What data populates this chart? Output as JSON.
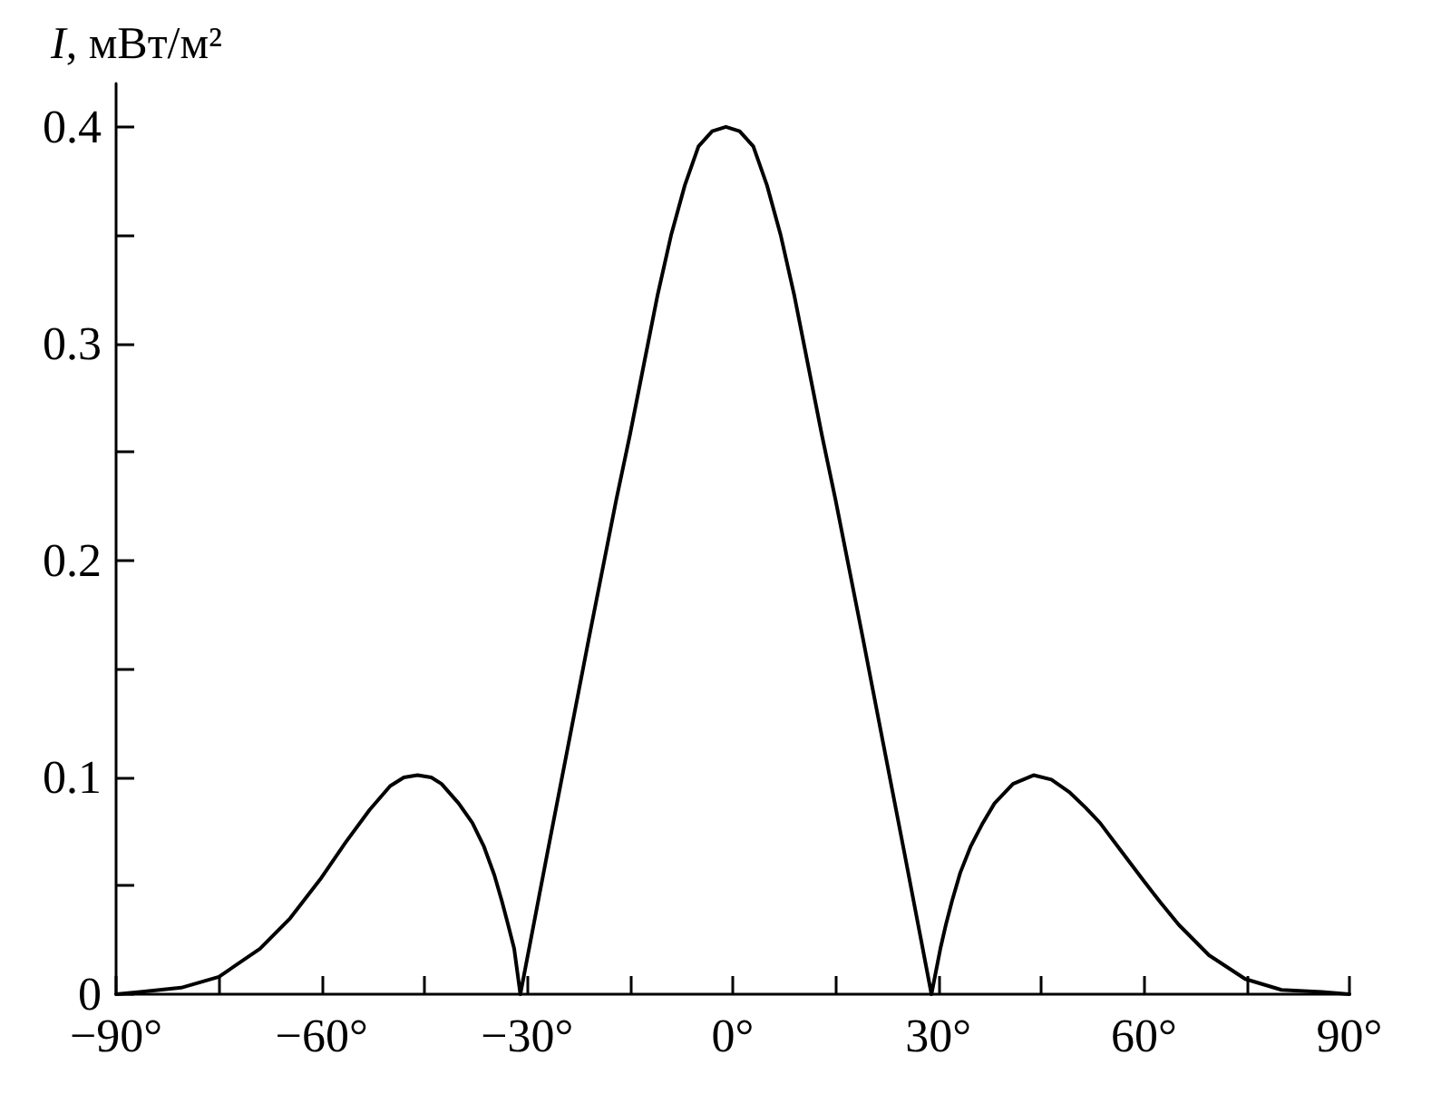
{
  "chart_data": {
    "type": "line",
    "ylabel": "I, мВт/м²",
    "color": "#000000",
    "x": [
      -90,
      -86.5,
      -80.5,
      -75,
      -69,
      -64.6,
      -62.4,
      -60.2,
      -56.5,
      -53,
      -50,
      -48,
      -46,
      -44,
      -42.5,
      -40,
      -38,
      -36.3,
      -34.8,
      -33.7,
      -32.7,
      -31.9,
      -31,
      -29,
      -27,
      -24,
      -21,
      -19,
      -17,
      -15,
      -13,
      -11,
      -9,
      -7,
      -5,
      -3,
      -1,
      1,
      3,
      5,
      7,
      9,
      11,
      13,
      15,
      17,
      19,
      22,
      25,
      27,
      29,
      30.3,
      31.1,
      32,
      33.2,
      34.7,
      36.5,
      38.2,
      40.9,
      43.9,
      46.5,
      49.2,
      51.5,
      53.6,
      56.7,
      59.8,
      62.5,
      65.1,
      69.5,
      74.8,
      80.1,
      86,
      90
    ],
    "values": [
      0,
      0.001,
      0.003,
      0.008,
      0.021,
      0.035,
      0.044,
      0.053,
      0.07,
      0.085,
      0.096,
      0.1,
      0.101,
      0.1,
      0.097,
      0.088,
      0.079,
      0.068,
      0.055,
      0.043,
      0.031,
      0.021,
      0,
      0.033,
      0.066,
      0.115,
      0.164,
      0.196,
      0.228,
      0.258,
      0.29,
      0.322,
      0.35,
      0.373,
      0.391,
      0.398,
      0.4,
      0.398,
      0.391,
      0.373,
      0.35,
      0.322,
      0.29,
      0.258,
      0.228,
      0.196,
      0.164,
      0.115,
      0.066,
      0.033,
      0,
      0.021,
      0.032,
      0.043,
      0.056,
      0.068,
      0.079,
      0.088,
      0.097,
      0.101,
      0.099,
      0.093,
      0.086,
      0.079,
      0.066,
      0.053,
      0.042,
      0.032,
      0.018,
      0.007,
      0.002,
      0.001,
      0
    ],
    "xlim": [
      -90,
      90
    ],
    "xticks": [
      {
        "value": -90,
        "label": "−90°"
      },
      {
        "value": -75,
        "label": null
      },
      {
        "value": -60,
        "label": "−60°"
      },
      {
        "value": -45,
        "label": null
      },
      {
        "value": -30,
        "label": "−30°"
      },
      {
        "value": -15,
        "label": null
      },
      {
        "value": 0,
        "label": "0°"
      },
      {
        "value": 15,
        "label": null
      },
      {
        "value": 30,
        "label": "30°"
      },
      {
        "value": 45,
        "label": null
      },
      {
        "value": 60,
        "label": "60°"
      },
      {
        "value": 75,
        "label": null
      },
      {
        "value": 90,
        "label": "90°"
      }
    ],
    "ylim": [
      0,
      0.42
    ],
    "yticks": [
      0,
      {
        "value": 0.05,
        "label": null
      },
      0.1,
      {
        "value": 0.15,
        "label": null
      },
      0.2,
      {
        "value": 0.25,
        "label": null
      },
      0.3,
      {
        "value": 0.35,
        "label": null
      },
      0.4
    ]
  }
}
